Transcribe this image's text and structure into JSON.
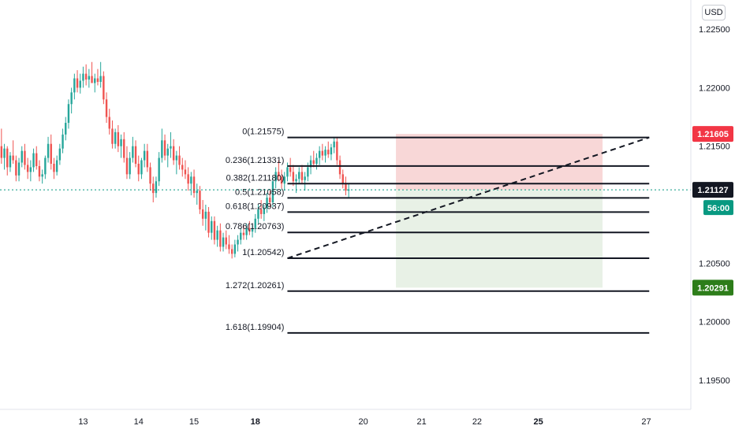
{
  "currency_label": "USD",
  "chart_data": {
    "type": "candlestick",
    "y_axis": {
      "range": [
        1.1925,
        1.2275
      ],
      "tick_labels": [
        "1.22500",
        "1.22000",
        "1.21500",
        "1.20500",
        "1.20000",
        "1.19500"
      ],
      "tick_values": [
        1.225,
        1.22,
        1.215,
        1.205,
        1.2,
        1.195
      ]
    },
    "x_axis": {
      "tick_labels": [
        {
          "label": "13",
          "bar": 28,
          "bold": false
        },
        {
          "label": "14",
          "bar": 47,
          "bold": false
        },
        {
          "label": "15",
          "bar": 66,
          "bold": false
        },
        {
          "label": "18",
          "bar": 87,
          "bold": true
        },
        {
          "label": "20",
          "bar": 124,
          "bold": false
        },
        {
          "label": "21",
          "bar": 144,
          "bold": false
        },
        {
          "label": "22",
          "bar": 163,
          "bold": false
        },
        {
          "label": "25",
          "bar": 184,
          "bold": true
        },
        {
          "label": "27",
          "bar": 221,
          "bold": false
        }
      ]
    },
    "last_bar_index": 136,
    "fibonacci": {
      "anchor_start_bar": 98,
      "anchor_end_bar": 222,
      "levels": [
        {
          "label": "0(1.21575)",
          "value": 1.21575
        },
        {
          "label": "0.236(1.21331)",
          "value": 1.21331
        },
        {
          "label": "0.382(1.21180)",
          "value": 1.2118
        },
        {
          "label": "0.5(1.21058)",
          "value": 1.21058
        },
        {
          "label": "0.618(1.20937)",
          "value": 1.20937
        },
        {
          "label": "0.786(1.20763)",
          "value": 1.20763
        },
        {
          "label": "1(1.20542)",
          "value": 1.20542
        },
        {
          "label": "1.272(1.20261)",
          "value": 1.20261
        },
        {
          "label": "1.618(1.19904)",
          "value": 1.19904
        }
      ],
      "trend_line": {
        "from_bar": 98,
        "from_value": 1.20542,
        "to_bar": 222,
        "to_value": 1.21575
      }
    },
    "position": {
      "from_bar": 136,
      "to_bar": 206,
      "entry": 1.21127,
      "stop": 1.21605,
      "target": 1.20291
    },
    "price_tags": [
      {
        "label": "1.21605",
        "value": 1.21605,
        "color": "#f23645"
      },
      {
        "label": "1.21127",
        "value": 1.21127,
        "color": "#131722"
      },
      {
        "label": "1.20291",
        "value": 1.20291,
        "color": "#2d7d1a"
      }
    ],
    "countdown_label": "56:00",
    "countdown_color": "#089981",
    "colors": {
      "up": "#26a69a",
      "down": "#ef5350",
      "stop_zone": "#f8d7d7",
      "target_zone": "#e8f1e6"
    },
    "candles": [
      [
        1.215,
        1.2165,
        1.2135,
        1.214
      ],
      [
        1.214,
        1.2152,
        1.213,
        1.2148
      ],
      [
        1.2148,
        1.215,
        1.2125,
        1.2132
      ],
      [
        1.2132,
        1.2145,
        1.2128,
        1.2142
      ],
      [
        1.2142,
        1.2155,
        1.2135,
        1.2138
      ],
      [
        1.2138,
        1.2142,
        1.212,
        1.2125
      ],
      [
        1.2125,
        1.214,
        1.212,
        1.2136
      ],
      [
        1.2136,
        1.215,
        1.2132,
        1.2146
      ],
      [
        1.2146,
        1.2152,
        1.213,
        1.2134
      ],
      [
        1.2134,
        1.214,
        1.2122,
        1.2128
      ],
      [
        1.2128,
        1.2138,
        1.212,
        1.2132
      ],
      [
        1.2132,
        1.2148,
        1.2128,
        1.2144
      ],
      [
        1.2144,
        1.215,
        1.213,
        1.2133
      ],
      [
        1.2133,
        1.2138,
        1.212,
        1.2124
      ],
      [
        1.2124,
        1.213,
        1.2118,
        1.2126
      ],
      [
        1.2126,
        1.2142,
        1.2122,
        1.214
      ],
      [
        1.214,
        1.2158,
        1.2136,
        1.2152
      ],
      [
        1.2152,
        1.216,
        1.213,
        1.2135
      ],
      [
        1.2135,
        1.214,
        1.2122,
        1.2128
      ],
      [
        1.2128,
        1.2142,
        1.2125,
        1.2138
      ],
      [
        1.2138,
        1.2152,
        1.2134,
        1.2148
      ],
      [
        1.2148,
        1.2165,
        1.2144,
        1.216
      ],
      [
        1.216,
        1.2175,
        1.2155,
        1.217
      ],
      [
        1.217,
        1.219,
        1.2165,
        1.2186
      ],
      [
        1.2186,
        1.22,
        1.2178,
        1.2196
      ],
      [
        1.2196,
        1.2212,
        1.219,
        1.2208
      ],
      [
        1.2208,
        1.2215,
        1.2196,
        1.22
      ],
      [
        1.22,
        1.2212,
        1.2195,
        1.2206
      ],
      [
        1.2206,
        1.2218,
        1.22,
        1.2212
      ],
      [
        1.2212,
        1.222,
        1.2202,
        1.2207
      ],
      [
        1.2207,
        1.2216,
        1.22,
        1.221
      ],
      [
        1.221,
        1.2222,
        1.2205,
        1.2204
      ],
      [
        1.2204,
        1.2212,
        1.2196,
        1.2208
      ],
      [
        1.2208,
        1.2216,
        1.2202,
        1.2205
      ],
      [
        1.2205,
        1.2222,
        1.22,
        1.221
      ],
      [
        1.221,
        1.2214,
        1.2186,
        1.219
      ],
      [
        1.219,
        1.2196,
        1.217,
        1.2175
      ],
      [
        1.2175,
        1.2182,
        1.216,
        1.2165
      ],
      [
        1.2165,
        1.2172,
        1.2148,
        1.2152
      ],
      [
        1.2152,
        1.2165,
        1.2148,
        1.2162
      ],
      [
        1.2162,
        1.2168,
        1.2145,
        1.215
      ],
      [
        1.215,
        1.216,
        1.214,
        1.2156
      ],
      [
        1.2156,
        1.2162,
        1.2136,
        1.214
      ],
      [
        1.214,
        1.215,
        1.2122,
        1.2126
      ],
      [
        1.2126,
        1.2145,
        1.2122,
        1.214
      ],
      [
        1.214,
        1.2158,
        1.2136,
        1.215
      ],
      [
        1.215,
        1.2155,
        1.2132,
        1.2135
      ],
      [
        1.2135,
        1.2142,
        1.212,
        1.2126
      ],
      [
        1.2126,
        1.214,
        1.2122,
        1.2138
      ],
      [
        1.2138,
        1.2152,
        1.2132,
        1.2146
      ],
      [
        1.2146,
        1.2152,
        1.2128,
        1.2132
      ],
      [
        1.2132,
        1.2136,
        1.2112,
        1.2118
      ],
      [
        1.2118,
        1.2124,
        1.2102,
        1.211
      ],
      [
        1.211,
        1.2124,
        1.2106,
        1.212
      ],
      [
        1.212,
        1.2145,
        1.2116,
        1.214
      ],
      [
        1.214,
        1.2165,
        1.2136,
        1.2155
      ],
      [
        1.2155,
        1.216,
        1.2138,
        1.2142
      ],
      [
        1.2142,
        1.2152,
        1.2132,
        1.2148
      ],
      [
        1.2148,
        1.2162,
        1.214,
        1.215
      ],
      [
        1.215,
        1.2156,
        1.2134,
        1.2138
      ],
      [
        1.2138,
        1.2146,
        1.2126,
        1.2142
      ],
      [
        1.2142,
        1.215,
        1.213,
        1.2134
      ],
      [
        1.2134,
        1.214,
        1.2124,
        1.213
      ],
      [
        1.213,
        1.2138,
        1.2122,
        1.2126
      ],
      [
        1.2126,
        1.2132,
        1.2112,
        1.2118
      ],
      [
        1.2118,
        1.2128,
        1.2108,
        1.2124
      ],
      [
        1.2124,
        1.213,
        1.2106,
        1.211
      ],
      [
        1.211,
        1.2118,
        1.21,
        1.2112
      ],
      [
        1.2112,
        1.2116,
        1.2092,
        1.2096
      ],
      [
        1.2096,
        1.2104,
        1.2082,
        1.2088
      ],
      [
        1.2088,
        1.21,
        1.2078,
        1.2094
      ],
      [
        1.2094,
        1.2098,
        1.2072,
        1.2076
      ],
      [
        1.2076,
        1.209,
        1.207,
        1.2086
      ],
      [
        1.2086,
        1.209,
        1.2066,
        1.207
      ],
      [
        1.207,
        1.2082,
        1.2064,
        1.2078
      ],
      [
        1.2078,
        1.2084,
        1.206,
        1.2064
      ],
      [
        1.2064,
        1.2076,
        1.206,
        1.2072
      ],
      [
        1.2072,
        1.2078,
        1.2062,
        1.2066
      ],
      [
        1.2066,
        1.2074,
        1.2058,
        1.2062
      ],
      [
        1.2062,
        1.2066,
        1.2054,
        1.2058
      ],
      [
        1.2058,
        1.207,
        1.2055,
        1.2066
      ],
      [
        1.2066,
        1.2074,
        1.206,
        1.207
      ],
      [
        1.207,
        1.208,
        1.2066,
        1.2076
      ],
      [
        1.2076,
        1.2082,
        1.207,
        1.2074
      ],
      [
        1.2074,
        1.2084,
        1.207,
        1.208
      ],
      [
        1.208,
        1.2086,
        1.2074,
        1.2077
      ],
      [
        1.2077,
        1.2083,
        1.2072,
        1.208
      ],
      [
        1.208,
        1.2092,
        1.2076,
        1.2088
      ],
      [
        1.2088,
        1.21,
        1.2084,
        1.2096
      ],
      [
        1.2096,
        1.2104,
        1.2088,
        1.2092
      ],
      [
        1.2092,
        1.21,
        1.2086,
        1.2097
      ],
      [
        1.2097,
        1.211,
        1.2093,
        1.2106
      ],
      [
        1.2106,
        1.2112,
        1.2098,
        1.2102
      ],
      [
        1.2102,
        1.2124,
        1.2098,
        1.212
      ],
      [
        1.212,
        1.2132,
        1.2114,
        1.2128
      ],
      [
        1.2128,
        1.2138,
        1.212,
        1.2124
      ],
      [
        1.2124,
        1.213,
        1.2114,
        1.2118
      ],
      [
        1.2118,
        1.2128,
        1.2112,
        1.2124
      ],
      [
        1.2124,
        1.2136,
        1.212,
        1.2132
      ],
      [
        1.2132,
        1.214,
        1.2124,
        1.2128
      ],
      [
        1.2128,
        1.2134,
        1.2116,
        1.212
      ],
      [
        1.212,
        1.2126,
        1.211,
        1.2122
      ],
      [
        1.2122,
        1.2132,
        1.2118,
        1.2128
      ],
      [
        1.2128,
        1.2134,
        1.2118,
        1.2121
      ],
      [
        1.2121,
        1.2128,
        1.2112,
        1.2124
      ],
      [
        1.2124,
        1.2136,
        1.212,
        1.2132
      ],
      [
        1.2132,
        1.2142,
        1.2126,
        1.2138
      ],
      [
        1.2138,
        1.2146,
        1.2132,
        1.2135
      ],
      [
        1.2135,
        1.2144,
        1.213,
        1.214
      ],
      [
        1.214,
        1.215,
        1.2134,
        1.2146
      ],
      [
        1.2146,
        1.2152,
        1.2138,
        1.2142
      ],
      [
        1.2142,
        1.215,
        1.2136,
        1.2147
      ],
      [
        1.2147,
        1.2154,
        1.214,
        1.2143
      ],
      [
        1.2143,
        1.2152,
        1.2138,
        1.2149
      ],
      [
        1.2149,
        1.2158,
        1.2144,
        1.2154
      ],
      [
        1.2154,
        1.2158,
        1.2134,
        1.2138
      ],
      [
        1.2138,
        1.2142,
        1.2122,
        1.2126
      ],
      [
        1.2126,
        1.213,
        1.2114,
        1.2118
      ],
      [
        1.2118,
        1.2124,
        1.2108,
        1.2112
      ],
      [
        1.2112,
        1.2118,
        1.2106,
        1.2113
      ]
    ]
  }
}
